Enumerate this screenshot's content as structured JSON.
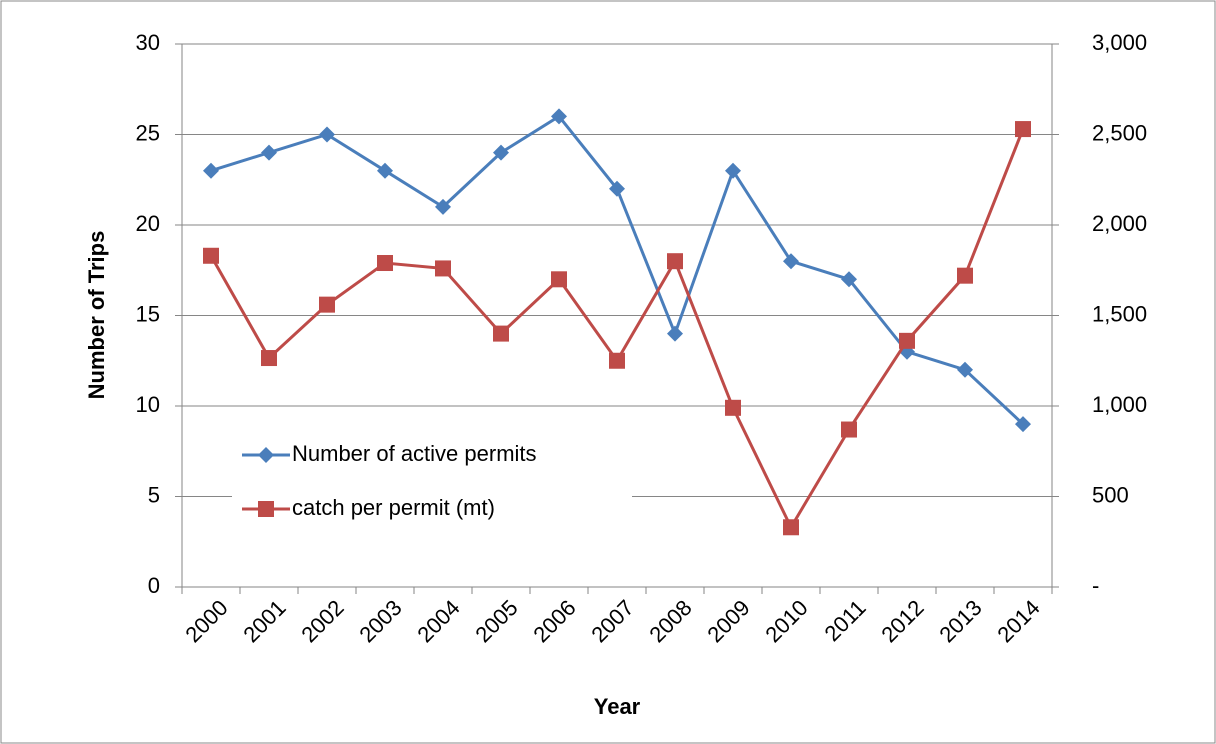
{
  "chart_data": {
    "type": "line",
    "x_label": "Year",
    "y_label": "Number of Trips",
    "categories": [
      "2000",
      "2001",
      "2002",
      "2003",
      "2004",
      "2005",
      "2006",
      "2007",
      "2008",
      "2009",
      "2010",
      "2011",
      "2012",
      "2013",
      "2014"
    ],
    "series": [
      {
        "name": "Number of active permits",
        "color": "#4a7ebb",
        "marker": "diamond",
        "axis": "y",
        "values": [
          23,
          24,
          25,
          23,
          21,
          24,
          26,
          22,
          14,
          23,
          18,
          17,
          13,
          12,
          9
        ]
      },
      {
        "name": "catch per permit (mt)",
        "color": "#be4b48",
        "marker": "square",
        "axis": "y2",
        "values": [
          1830,
          1265,
          1560,
          1790,
          1760,
          1400,
          1700,
          1250,
          1800,
          990,
          330,
          870,
          1360,
          1720,
          2530
        ]
      }
    ],
    "ylim": [
      0,
      30
    ],
    "yticks": [
      0,
      5,
      10,
      15,
      20,
      25,
      30
    ],
    "y2lim": [
      0,
      3000
    ],
    "y2ticks": [
      {
        "value": 0,
        "label": "-"
      },
      500,
      {
        "value": 1000,
        "label": "1,000"
      },
      {
        "value": 1500,
        "label": "1,500"
      },
      {
        "value": 2000,
        "label": "2,000"
      },
      {
        "value": 2500,
        "label": "2,500"
      },
      {
        "value": 3000,
        "label": "3,000"
      }
    ],
    "grid": true,
    "legend": "left"
  }
}
